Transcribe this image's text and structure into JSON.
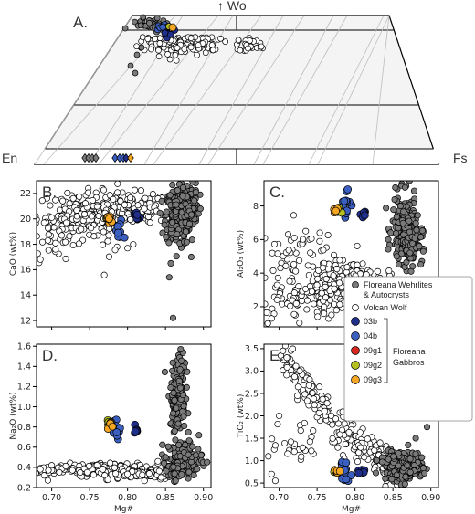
{
  "colors": {
    "floreana_wehrlites": "#7a7a7a",
    "volcan_wolf": "#ffffff",
    "03b": "#1f2f8a",
    "04b": "#3b5fc0",
    "09g1": "#d7261e",
    "09g2": "#b5c020",
    "09g3": "#f5a623"
  },
  "quad": {
    "panel_label": "A.",
    "apex_label": "↑ Wo",
    "left_label": "En",
    "right_label": "Fs"
  },
  "legend": {
    "entries": [
      {
        "key": "floreana_wehrlites",
        "label": "Floreana Wehrlites\n& Autocrysts"
      },
      {
        "key": "volcan_wolf",
        "label": "Volcan Wolf"
      },
      {
        "key": "03b",
        "label": "03b"
      },
      {
        "key": "04b",
        "label": "04b"
      },
      {
        "key": "09g1",
        "label": "09g1"
      },
      {
        "key": "09g2",
        "label": "09g2"
      },
      {
        "key": "09g3",
        "label": "09g3"
      }
    ],
    "group_label": "Floreana\nGabbros"
  },
  "chart_data": [
    {
      "type": "scatter",
      "panel": "B.",
      "xlabel": "",
      "ylabel": "CaO (wt%)",
      "xlim": [
        0.68,
        0.91
      ],
      "ylim": [
        11.5,
        23
      ],
      "xticks": [],
      "yticks": [
        12,
        14,
        16,
        18,
        20,
        22
      ],
      "series": [
        {
          "key": "volcan_wolf",
          "clusters": [
            [
              0.74,
              20.3,
              0.03,
              0.9,
              150
            ],
            [
              0.8,
              20.8,
              0.03,
              0.6,
              130
            ],
            [
              0.71,
              18.6,
              0.02,
              1.0,
              25
            ],
            [
              0.775,
              19.2,
              0.01,
              0.9,
              15
            ]
          ],
          "points": [
            [
              0.685,
              16.8
            ],
            [
              0.69,
              19.7
            ],
            [
              0.695,
              18.3
            ],
            [
              0.7,
              20.1
            ],
            [
              0.705,
              17.6
            ],
            [
              0.8,
              17.7
            ],
            [
              0.79,
              18.5
            ]
          ]
        },
        {
          "key": "floreana_wehrlites",
          "clusters": [
            [
              0.866,
              20.2,
              0.008,
              1.1,
              260
            ],
            [
              0.88,
              21.0,
              0.007,
              0.9,
              80
            ]
          ],
          "points": [
            [
              0.855,
              15.4
            ],
            [
              0.857,
              16.5
            ],
            [
              0.86,
              12.2
            ],
            [
              0.896,
              20.8
            ],
            [
              0.884,
              17.0
            ],
            [
              0.89,
              22.1
            ]
          ]
        },
        {
          "key": "03b",
          "clusters": [
            [
              0.813,
              20.1,
              0.002,
              0.2,
              8
            ]
          ],
          "points": []
        },
        {
          "key": "04b",
          "clusters": [
            [
              0.789,
              19.0,
              0.003,
              0.5,
              10
            ]
          ],
          "points": []
        },
        {
          "key": "09g1",
          "clusters": [
            [
              0.775,
              19.9,
              0.002,
              0.1,
              3
            ]
          ],
          "points": []
        },
        {
          "key": "09g2",
          "clusters": [
            [
              0.775,
              20.0,
              0.002,
              0.1,
              3
            ]
          ],
          "points": []
        },
        {
          "key": "09g3",
          "clusters": [
            [
              0.776,
              20.0,
              0.003,
              0.2,
              10
            ]
          ],
          "points": []
        }
      ]
    },
    {
      "type": "scatter",
      "panel": "C.",
      "xlabel": "",
      "ylabel": "Al₂O₃ (wt%)",
      "xlim": [
        0.68,
        0.91
      ],
      "ylim": [
        0.8,
        9.5
      ],
      "xticks": [],
      "yticks": [
        2,
        4,
        6,
        8
      ],
      "series": [
        {
          "key": "volcan_wolf",
          "clusters": [
            [
              0.745,
              2.6,
              0.04,
              0.5,
              110
            ],
            [
              0.81,
              3.2,
              0.03,
              0.6,
              110
            ],
            [
              0.725,
              4.8,
              0.025,
              1.1,
              60
            ],
            [
              0.78,
              3.8,
              0.02,
              0.7,
              50
            ]
          ],
          "points": [
            [
              0.685,
              1.0
            ],
            [
              0.69,
              1.3
            ],
            [
              0.72,
              6.1
            ],
            [
              0.735,
              6.5
            ],
            [
              0.83,
              4.1
            ]
          ]
        },
        {
          "key": "floreana_wehrlites",
          "clusters": [
            [
              0.865,
              6.6,
              0.008,
              1.0,
              200
            ],
            [
              0.875,
              5.8,
              0.007,
              0.6,
              60
            ]
          ],
          "points": [
            [
              0.855,
              5.0
            ],
            [
              0.89,
              5.3
            ],
            [
              0.866,
              9.1
            ],
            [
              0.86,
              8.0
            ]
          ]
        },
        {
          "key": "03b",
          "clusters": [
            [
              0.812,
              7.5,
              0.002,
              0.1,
              6
            ]
          ],
          "points": []
        },
        {
          "key": "04b",
          "clusters": [
            [
              0.787,
              8.2,
              0.003,
              0.6,
              14
            ]
          ],
          "points": []
        },
        {
          "key": "09g1",
          "clusters": [
            [
              0.778,
              7.7,
              0.002,
              0.1,
              2
            ]
          ],
          "points": []
        },
        {
          "key": "09g2",
          "clusters": [
            [
              0.777,
              7.7,
              0.002,
              0.1,
              4
            ]
          ],
          "points": []
        },
        {
          "key": "09g3",
          "clusters": [
            [
              0.776,
              7.8,
              0.002,
              0.1,
              4
            ]
          ],
          "points": []
        }
      ]
    },
    {
      "type": "scatter",
      "panel": "D.",
      "xlabel": "Mg#",
      "ylabel": "Na₂O (wt%)",
      "xlim": [
        0.68,
        0.91
      ],
      "ylim": [
        0.2,
        1.62
      ],
      "xticks": [
        0.7,
        0.75,
        0.8,
        0.85,
        0.9
      ],
      "yticks": [
        0.2,
        0.4,
        0.6,
        0.8,
        1.0,
        1.2,
        1.4,
        1.6
      ],
      "series": [
        {
          "key": "volcan_wolf",
          "clusters": [
            [
              0.76,
              0.38,
              0.04,
              0.03,
              180
            ],
            [
              0.815,
              0.33,
              0.025,
              0.025,
              80
            ]
          ],
          "points": [
            [
              0.685,
              0.38
            ],
            [
              0.69,
              0.32
            ],
            [
              0.695,
              0.27
            ],
            [
              0.7,
              0.42
            ],
            [
              0.71,
              0.35
            ],
            [
              0.84,
              0.46
            ]
          ]
        },
        {
          "key": "floreana_wehrlites",
          "clusters": [
            [
              0.866,
              1.05,
              0.005,
              0.14,
              130
            ],
            [
              0.868,
              1.35,
              0.004,
              0.12,
              60
            ],
            [
              0.875,
              0.5,
              0.012,
              0.08,
              110
            ],
            [
              0.86,
              0.35,
              0.006,
              0.04,
              30
            ]
          ],
          "points": [
            [
              0.85,
              0.5
            ],
            [
              0.848,
              0.44
            ],
            [
              0.89,
              0.52
            ],
            [
              0.893,
              0.58
            ],
            [
              0.88,
              0.29
            ],
            [
              0.87,
              1.57
            ]
          ]
        },
        {
          "key": "03b",
          "clusters": [
            [
              0.81,
              0.77,
              0.002,
              0.03,
              6
            ]
          ],
          "points": []
        },
        {
          "key": "04b",
          "clusters": [
            [
              0.787,
              0.78,
              0.003,
              0.04,
              14
            ]
          ],
          "points": []
        },
        {
          "key": "09g1",
          "clusters": [
            [
              0.778,
              0.8,
              0.001,
              0.01,
              2
            ]
          ],
          "points": []
        },
        {
          "key": "09g2",
          "clusters": [
            [
              0.776,
              0.83,
              0.002,
              0.02,
              4
            ]
          ],
          "points": []
        },
        {
          "key": "09g3",
          "clusters": [
            [
              0.777,
              0.81,
              0.002,
              0.02,
              6
            ]
          ],
          "points": []
        }
      ]
    },
    {
      "type": "scatter",
      "panel": "E.",
      "xlabel": "Mg#",
      "ylabel": "TiO₂ (wt%)",
      "xlim": [
        0.68,
        0.91
      ],
      "ylim": [
        0.4,
        3.6
      ],
      "xticks": [
        0.7,
        0.75,
        0.8,
        0.85,
        0.9
      ],
      "yticks": [
        0.5,
        1.0,
        1.5,
        2.0,
        2.5,
        3.0,
        3.5
      ],
      "series": [
        {
          "key": "volcan_wolf",
          "band": [
            [
              0.71,
              3.2
            ],
            [
              0.75,
              2.3
            ],
            [
              0.79,
              1.55
            ],
            [
              0.83,
              1.05
            ],
            [
              0.86,
              0.8
            ]
          ],
          "band_sd": 0.2,
          "band_n": 230,
          "clusters": [
            [
              0.73,
              1.4,
              0.03,
              0.25,
              30
            ]
          ],
          "points": [
            [
              0.705,
              3.45
            ],
            [
              0.71,
              3.3
            ],
            [
              0.69,
              0.7
            ],
            [
              0.695,
              0.55
            ],
            [
              0.7,
              2.0
            ],
            [
              0.72,
              1.2
            ]
          ]
        },
        {
          "key": "floreana_wehrlites",
          "clusters": [
            [
              0.865,
              0.85,
              0.012,
              0.13,
              280
            ],
            [
              0.85,
              1.05,
              0.006,
              0.12,
              40
            ]
          ],
          "points": [
            [
              0.895,
              1.75
            ],
            [
              0.903,
              2.0
            ],
            [
              0.84,
              0.6
            ],
            [
              0.88,
              1.5
            ],
            [
              0.87,
              1.35
            ]
          ]
        },
        {
          "key": "03b",
          "clusters": [
            [
              0.81,
              0.76,
              0.002,
              0.03,
              6
            ]
          ],
          "points": []
        },
        {
          "key": "04b",
          "clusters": [
            [
              0.787,
              0.85,
              0.003,
              0.15,
              14
            ]
          ],
          "points": []
        },
        {
          "key": "09g1",
          "clusters": [
            [
              0.776,
              0.75,
              0.001,
              0.01,
              2
            ]
          ],
          "points": []
        },
        {
          "key": "09g2",
          "clusters": [
            [
              0.775,
              0.77,
              0.002,
              0.02,
              4
            ]
          ],
          "points": []
        },
        {
          "key": "09g3",
          "clusters": [
            [
              0.776,
              0.77,
              0.002,
              0.02,
              8
            ]
          ],
          "points": []
        }
      ]
    }
  ]
}
